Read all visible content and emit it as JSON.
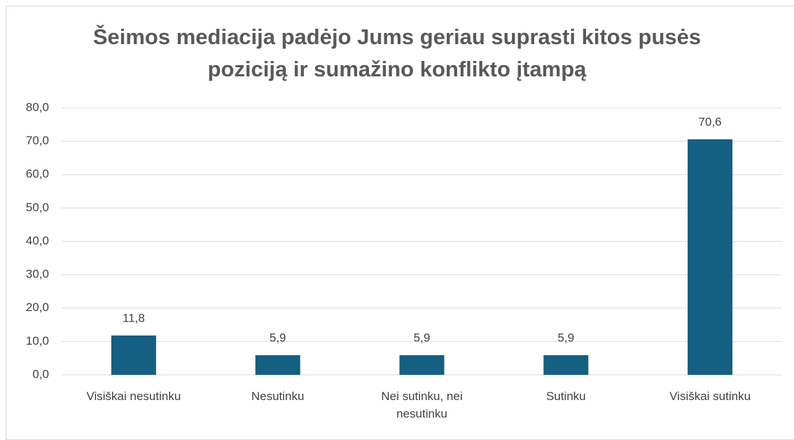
{
  "chart_data": {
    "type": "bar",
    "title": "Šeimos mediacija padėjo Jums geriau suprasti kitos pusės poziciją ir sumažino konflikto įtampą",
    "categories": [
      "Visiškai nesutinku",
      "Nesutinku",
      "Nei sutinku, nei nesutinku",
      "Sutinku",
      "Visiškai sutinku"
    ],
    "values": [
      11.8,
      5.9,
      5.9,
      5.9,
      70.6
    ],
    "value_labels": [
      "11,8",
      "5,9",
      "5,9",
      "5,9",
      "70,6"
    ],
    "color": "#145f82",
    "ylim": [
      0,
      80
    ],
    "yticks": [
      {
        "value": 0,
        "label": "0,0"
      },
      {
        "value": 10,
        "label": "10,0"
      },
      {
        "value": 20,
        "label": "20,0"
      },
      {
        "value": 30,
        "label": "30,0"
      },
      {
        "value": 40,
        "label": "40,0"
      },
      {
        "value": 50,
        "label": "50,0"
      },
      {
        "value": 60,
        "label": "60,0"
      },
      {
        "value": 70,
        "label": "70,0"
      },
      {
        "value": 80,
        "label": "80,0"
      }
    ],
    "grid": true
  }
}
